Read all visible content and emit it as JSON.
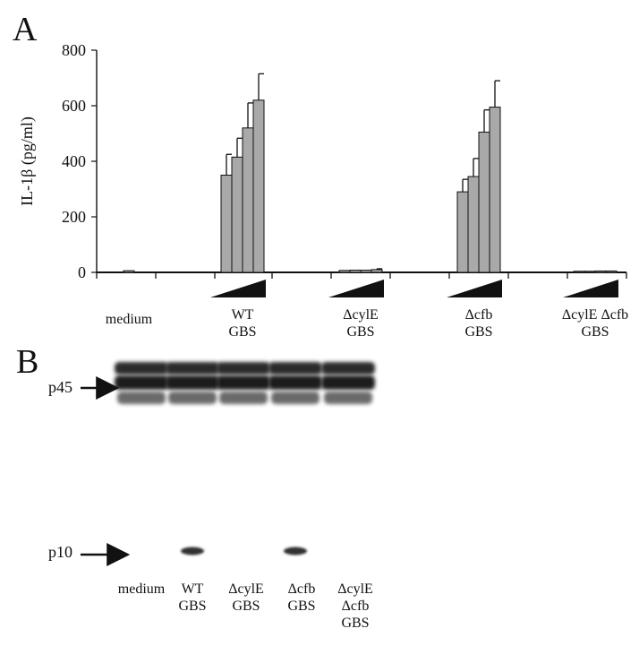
{
  "panels": {
    "a": "A",
    "b": "B"
  },
  "chart_data": {
    "type": "bar",
    "ylabel": "IL-1β (pg/ml)",
    "yticks": [
      "0",
      "200",
      "400",
      "600",
      "800"
    ],
    "ylim": [
      0,
      800
    ],
    "groups": [
      {
        "line1": "medium",
        "line2": "",
        "line3": "",
        "values": [
          6
        ],
        "errors": [
          0
        ],
        "dose_ramp": false
      },
      {
        "line1": "WT",
        "line2": "GBS",
        "line3": "",
        "values": [
          350,
          415,
          520,
          620
        ],
        "errors": [
          75,
          68,
          90,
          95
        ],
        "dose_ramp": true
      },
      {
        "line1": "ΔcylE",
        "line2": "GBS",
        "line3": "",
        "values": [
          7,
          8,
          8,
          10
        ],
        "errors": [
          2,
          2,
          2,
          3
        ],
        "dose_ramp": true
      },
      {
        "line1": "Δcfb",
        "line2": "GBS",
        "line3": "",
        "values": [
          290,
          345,
          505,
          595
        ],
        "errors": [
          45,
          65,
          80,
          95
        ],
        "dose_ramp": true
      },
      {
        "line1": "ΔcylE Δcfb",
        "line2": "GBS",
        "line3": "",
        "values": [
          4,
          4,
          5,
          5
        ],
        "errors": [
          1,
          1,
          1,
          1
        ],
        "dose_ramp": true
      }
    ],
    "bar_color": "#a9a9a9"
  },
  "blot": {
    "band_labels": {
      "p45": "p45",
      "p10": "p10"
    },
    "lanes": [
      {
        "line1": "medium",
        "line2": "",
        "line3": "",
        "p10": 0
      },
      {
        "line1": "WT",
        "line2": "GBS",
        "line3": "",
        "p10": 1
      },
      {
        "line1": "ΔcylE",
        "line2": "GBS",
        "line3": "",
        "p10": 0
      },
      {
        "line1": "Δcfb",
        "line2": "GBS",
        "line3": "",
        "p10": 1
      },
      {
        "line1": "ΔcylE",
        "line2": "Δcfb",
        "line3": "GBS",
        "p10": 0
      }
    ]
  }
}
